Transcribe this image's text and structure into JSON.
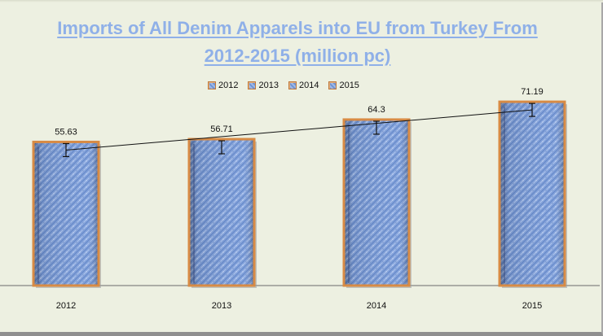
{
  "chart_data": {
    "type": "bar",
    "title": "Imports of All Denim Apparels into EU from Turkey From 2012-2015 (million pc)",
    "title_lines": [
      "Imports of All Denim Apparels into EU from Turkey From",
      "2012-2015 (million pc)"
    ],
    "categories": [
      "2012",
      "2013",
      "2014",
      "2015"
    ],
    "series": [
      {
        "values": [
          55.63,
          56.71,
          64.3,
          71.19
        ]
      }
    ],
    "data_labels": [
      "55.63",
      "56.71",
      "64.3",
      "71.19"
    ],
    "legend": {
      "placement": "top-center",
      "entries": [
        "2012",
        "2013",
        "2014",
        "2015"
      ]
    },
    "ylim": [
      0,
      75
    ],
    "grid": false,
    "trendline": true,
    "error_bars": true,
    "colors": {
      "background": "#edf0e1",
      "bar_fill": "#7f9fda",
      "bar_pattern_light": "#a8c0ea",
      "bar_pattern_dark": "#567cbf",
      "bar_border": "#d88b45",
      "title": "#8fb0e8",
      "axis": "#555555"
    }
  }
}
